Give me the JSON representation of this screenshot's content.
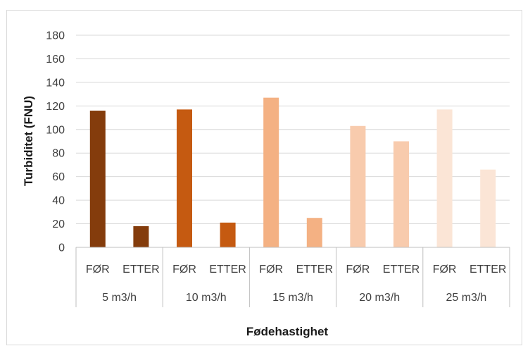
{
  "chart_data": {
    "type": "bar",
    "title": "",
    "xlabel": "Fødehastighet",
    "ylabel": "Turbiditet (FNU)",
    "ylim": [
      0,
      180
    ],
    "yticks": [
      "0",
      "20",
      "40",
      "60",
      "80",
      "100",
      "120",
      "140",
      "160",
      "180"
    ],
    "grid": true,
    "groups": [
      {
        "label": "5 m3/h",
        "color": "#843c0c",
        "bars": [
          {
            "category": "FØR",
            "value": 116
          },
          {
            "category": "ETTER",
            "value": 18
          }
        ]
      },
      {
        "label": "10 m3/h",
        "color": "#c55a11",
        "bars": [
          {
            "category": "FØR",
            "value": 117
          },
          {
            "category": "ETTER",
            "value": 21
          }
        ]
      },
      {
        "label": "15 m3/h",
        "color": "#f4b183",
        "bars": [
          {
            "category": "FØR",
            "value": 127
          },
          {
            "category": "ETTER",
            "value": 25
          }
        ]
      },
      {
        "label": "20 m3/h",
        "color": "#f8cbad",
        "bars": [
          {
            "category": "FØR",
            "value": 103
          },
          {
            "category": "ETTER",
            "value": 90
          }
        ]
      },
      {
        "label": "25 m3/h",
        "color": "#fbe5d6",
        "bars": [
          {
            "category": "FØR",
            "value": 117
          },
          {
            "category": "ETTER",
            "value": 66
          }
        ]
      }
    ]
  }
}
